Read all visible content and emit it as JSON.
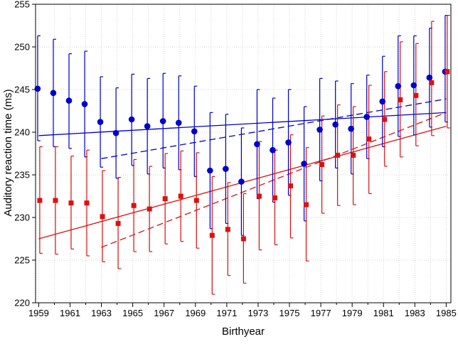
{
  "chart_data": {
    "type": "scatter",
    "title": "",
    "xlabel": "Birthyear",
    "ylabel": "Auditory reaction time (ms)",
    "xlim": [
      1958.8,
      1985.3
    ],
    "ylim": [
      220,
      255
    ],
    "xticks": [
      1959,
      1961,
      1963,
      1965,
      1967,
      1969,
      1971,
      1973,
      1975,
      1977,
      1979,
      1981,
      1983,
      1985
    ],
    "yticks": [
      220,
      225,
      230,
      235,
      240,
      245,
      250,
      255
    ],
    "grid": true,
    "legend": "none",
    "colors": {
      "blue": "#0000cc",
      "red": "#dd1111"
    },
    "series": [
      {
        "marker": "circle",
        "color": "#0000cc",
        "x": [
          1959,
          1960,
          1961,
          1962,
          1963,
          1964,
          1965,
          1966,
          1967,
          1968,
          1969,
          1970,
          1971,
          1972,
          1973,
          1974,
          1975,
          1976,
          1977,
          1978,
          1979,
          1980,
          1981,
          1982,
          1983,
          1984,
          1985
        ],
        "y": [
          245.1,
          244.6,
          243.7,
          243.3,
          241.2,
          239.9,
          241.5,
          240.7,
          241.3,
          241.1,
          240.1,
          235.5,
          235.7,
          234.2,
          238.6,
          237.9,
          238.8,
          236.3,
          240.3,
          240.9,
          240.4,
          241.8,
          243.6,
          245.4,
          245.5,
          246.4,
          247.1
        ],
        "y_low": [
          239.0,
          238.3,
          238.1,
          237.1,
          235.9,
          234.6,
          236.1,
          235.1,
          235.8,
          235.6,
          234.8,
          228.7,
          229.3,
          227.9,
          232.2,
          231.8,
          232.6,
          229.6,
          234.3,
          235.8,
          235.1,
          236.9,
          238.3,
          239.5,
          239.7,
          240.6,
          241.2
        ],
        "y_high": [
          251.3,
          250.9,
          249.2,
          249.5,
          246.5,
          245.2,
          246.8,
          246.3,
          246.9,
          246.6,
          245.4,
          242.3,
          242.1,
          240.5,
          245.0,
          244.0,
          245.0,
          243.0,
          246.3,
          246.0,
          245.7,
          246.7,
          248.9,
          251.3,
          251.3,
          252.2,
          253.7
        ],
        "fit_solid": [
          [
            1959,
            239.6
          ],
          [
            1985,
            242.3
          ]
        ],
        "fit_dashed": [
          [
            1963,
            236.9
          ],
          [
            1985,
            243.9
          ]
        ]
      },
      {
        "marker": "square",
        "color": "#dd1111",
        "x": [
          1959,
          1960,
          1961,
          1962,
          1963,
          1964,
          1965,
          1966,
          1967,
          1968,
          1969,
          1970,
          1971,
          1972,
          1973,
          1974,
          1975,
          1976,
          1977,
          1978,
          1979,
          1980,
          1981,
          1982,
          1983,
          1984,
          1985
        ],
        "y": [
          232.0,
          232.0,
          231.7,
          231.7,
          230.1,
          229.3,
          231.4,
          231.0,
          232.2,
          232.5,
          232.0,
          227.9,
          228.6,
          227.5,
          232.5,
          232.3,
          233.7,
          231.5,
          236.2,
          237.3,
          237.3,
          239.2,
          241.5,
          243.8,
          244.3,
          245.8,
          247.1
        ],
        "y_low": [
          225.8,
          225.7,
          226.3,
          225.5,
          224.8,
          224.0,
          226.0,
          226.0,
          226.9,
          227.2,
          226.4,
          221.0,
          223.2,
          222.3,
          226.2,
          226.8,
          227.6,
          224.9,
          230.5,
          231.4,
          231.5,
          232.8,
          236.0,
          237.1,
          238.4,
          239.6,
          240.5
        ],
        "y_high": [
          238.3,
          238.3,
          237.2,
          237.9,
          235.5,
          234.7,
          236.8,
          236.0,
          237.5,
          237.8,
          237.6,
          234.8,
          234.1,
          232.8,
          238.9,
          237.9,
          239.7,
          238.2,
          241.9,
          243.2,
          243.0,
          245.5,
          247.1,
          250.6,
          250.4,
          253.0,
          253.7
        ],
        "fit_solid": [
          [
            1959,
            227.5
          ],
          [
            1985,
            240.7
          ]
        ],
        "fit_dashed": [
          [
            1963,
            226.5
          ],
          [
            1985,
            242.3
          ]
        ]
      }
    ]
  }
}
